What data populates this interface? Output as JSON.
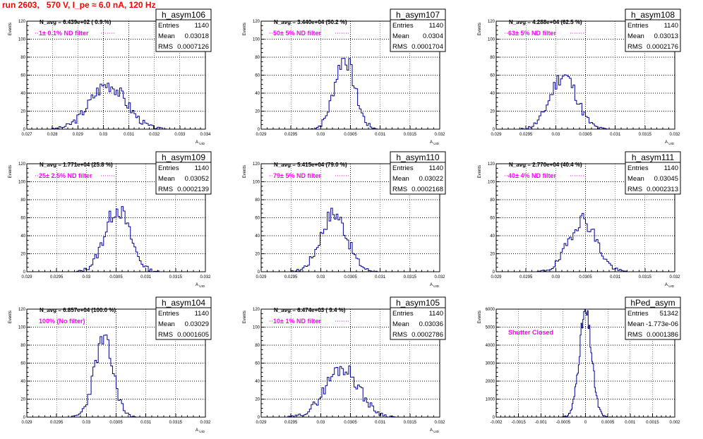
{
  "title": "run 2603,   570 V, I_pe ≈ 6.0 nA, 120 Hz",
  "colors": {
    "title": "#ff0000",
    "hist": "#000099",
    "filter_text": "#ff00ff"
  },
  "chart_data": [
    {
      "type": "bar",
      "name": "h_asym106",
      "ylabel": "Events",
      "xlabel": "A",
      "ylim": [
        0,
        120
      ],
      "xlim": [
        0.027,
        0.034
      ],
      "xticks": [
        0.027,
        0.028,
        0.029,
        0.03,
        0.031,
        0.032,
        0.033,
        0.034
      ],
      "xtick_labels": [
        "0.027",
        "0.028",
        "0.029",
        "0.03",
        "0.031",
        "0.032",
        "0.033",
        "0.034"
      ],
      "yticks": [
        0,
        20,
        40,
        60,
        80,
        100,
        120
      ],
      "stats": {
        "entries": "1140",
        "mean": "0.03018",
        "rms": "0.0007126"
      },
      "navg": "N_avg = 6.439e+02 ( 0.9 %)",
      "filter": "1± 0.1% ND filter",
      "hist_mean": 0.03018,
      "hist_sigma": 0.00071,
      "hist_peak": 50,
      "nbins": 100,
      "seed": 3,
      "grid": true
    },
    {
      "type": "bar",
      "name": "h_asym107",
      "ylabel": "Events",
      "xlabel": "A",
      "ylim": [
        0,
        120
      ],
      "xlim": [
        0.029,
        0.032
      ],
      "xticks": [
        0.029,
        0.0295,
        0.03,
        0.0305,
        0.031,
        0.0315,
        0.032
      ],
      "xtick_labels": [
        "0.029",
        "0.0295",
        "0.03",
        "0.0305",
        "0.031",
        "0.0315",
        "0.032"
      ],
      "yticks": [
        0,
        20,
        40,
        60,
        80,
        100,
        120
      ],
      "stats": {
        "entries": "1140",
        "mean": "0.0304",
        "rms": "0.0001704"
      },
      "navg": "N_avg = 3.440e+04 (50.2 %)",
      "filter": "50± 5% ND filter",
      "hist_mean": 0.0304,
      "hist_sigma": 0.00017,
      "hist_peak": 79,
      "nbins": 100,
      "seed": 7,
      "grid": true
    },
    {
      "type": "bar",
      "name": "h_asym108",
      "ylabel": "Events",
      "xlabel": "A",
      "ylim": [
        0,
        120
      ],
      "xlim": [
        0.029,
        0.032
      ],
      "xticks": [
        0.029,
        0.0295,
        0.03,
        0.0305,
        0.031,
        0.0315,
        0.032
      ],
      "xtick_labels": [
        "0.029",
        "0.0295",
        "0.03",
        "0.0305",
        "0.031",
        "0.0315",
        "0.032"
      ],
      "yticks": [
        0,
        20,
        40,
        60,
        80,
        100,
        120
      ],
      "stats": {
        "entries": "1140",
        "mean": "0.03013",
        "rms": "0.0002176"
      },
      "navg": "N_avg = 4.288e+04 (62.5 %)",
      "filter": "63± 5% ND filter",
      "hist_mean": 0.03013,
      "hist_sigma": 0.00022,
      "hist_peak": 60,
      "nbins": 100,
      "seed": 11,
      "grid": true
    },
    {
      "type": "bar",
      "name": "h_asym109",
      "ylabel": "Events",
      "xlabel": "A",
      "ylim": [
        0,
        120
      ],
      "xlim": [
        0.029,
        0.032
      ],
      "xticks": [
        0.029,
        0.0295,
        0.03,
        0.0305,
        0.031,
        0.0315,
        0.032
      ],
      "xtick_labels": [
        "0.029",
        "0.0295",
        "0.03",
        "0.0305",
        "0.031",
        "0.0315",
        "0.032"
      ],
      "yticks": [
        0,
        20,
        40,
        60,
        80,
        100,
        120
      ],
      "stats": {
        "entries": "1140",
        "mean": "0.03052",
        "rms": "0.0002139"
      },
      "navg": "N_avg = 1.771e+04 (25.8 %)",
      "filter": "25± 2.5% ND filter",
      "hist_mean": 0.03052,
      "hist_sigma": 0.00021,
      "hist_peak": 70,
      "nbins": 100,
      "seed": 13,
      "grid": true
    },
    {
      "type": "bar",
      "name": "h_asym110",
      "ylabel": "Events",
      "xlabel": "A",
      "ylim": [
        0,
        120
      ],
      "xlim": [
        0.029,
        0.032
      ],
      "xticks": [
        0.029,
        0.0295,
        0.03,
        0.0305,
        0.031,
        0.0315,
        0.032
      ],
      "xtick_labels": [
        "0.029",
        "0.0295",
        "0.03",
        "0.0305",
        "0.031",
        "0.0315",
        "0.032"
      ],
      "yticks": [
        0,
        20,
        40,
        60,
        80,
        100,
        120
      ],
      "stats": {
        "entries": "1140",
        "mean": "0.03022",
        "rms": "0.0002168"
      },
      "navg": "N_avg = 5.415e+04 (79.0 %)",
      "filter": "79± 5% ND filter",
      "hist_mean": 0.03022,
      "hist_sigma": 0.00022,
      "hist_peak": 65,
      "nbins": 100,
      "seed": 17,
      "grid": true
    },
    {
      "type": "bar",
      "name": "h_asym111",
      "ylabel": "Events",
      "xlabel": "A",
      "ylim": [
        0,
        120
      ],
      "xlim": [
        0.029,
        0.032
      ],
      "xticks": [
        0.029,
        0.0295,
        0.03,
        0.0305,
        0.031,
        0.0315,
        0.032
      ],
      "xtick_labels": [
        "0.029",
        "0.0295",
        "0.03",
        "0.0305",
        "0.031",
        "0.0315",
        "0.032"
      ],
      "yticks": [
        0,
        20,
        40,
        60,
        80,
        100,
        120
      ],
      "stats": {
        "entries": "1140",
        "mean": "0.03045",
        "rms": "0.0002313"
      },
      "navg": "N_avg = 2.770e+04 (40.4 %)",
      "filter": "40± 4% ND filter",
      "hist_mean": 0.03045,
      "hist_sigma": 0.00023,
      "hist_peak": 58,
      "nbins": 100,
      "seed": 19,
      "grid": true
    },
    {
      "type": "bar",
      "name": "h_asym104",
      "ylabel": "Events",
      "xlabel": "A",
      "ylim": [
        0,
        120
      ],
      "xlim": [
        0.029,
        0.032
      ],
      "xticks": [
        0.029,
        0.0295,
        0.03,
        0.0305,
        0.031,
        0.0315,
        0.032
      ],
      "xtick_labels": [
        "0.029",
        "0.0295",
        "0.03",
        "0.0305",
        "0.031",
        "0.0315",
        "0.032"
      ],
      "yticks": [
        0,
        20,
        40,
        60,
        80,
        100,
        120
      ],
      "stats": {
        "entries": "1140",
        "mean": "0.03029",
        "rms": "0.0001605"
      },
      "navg": "N_avg = 6.857e+04 (100.0 %)",
      "filter": "100% (No filter)",
      "hist_mean": 0.03029,
      "hist_sigma": 0.00016,
      "hist_peak": 85,
      "nbins": 100,
      "seed": 23,
      "grid": true
    },
    {
      "type": "bar",
      "name": "h_asym105",
      "ylabel": "Events",
      "xlabel": "A",
      "ylim": [
        0,
        120
      ],
      "xlim": [
        0.029,
        0.032
      ],
      "xticks": [
        0.029,
        0.0295,
        0.03,
        0.0305,
        0.031,
        0.0315,
        0.032
      ],
      "xtick_labels": [
        "0.029",
        "0.0295",
        "0.03",
        "0.0305",
        "0.031",
        "0.0315",
        "0.032"
      ],
      "yticks": [
        0,
        20,
        40,
        60,
        80,
        100,
        120
      ],
      "stats": {
        "entries": "1140",
        "mean": "0.03036",
        "rms": "0.0002786"
      },
      "navg": "N_avg = 6.474e+03 ( 9.4 %)",
      "filter": "10± 1% ND filter",
      "hist_mean": 0.03036,
      "hist_sigma": 0.00028,
      "hist_peak": 55,
      "nbins": 100,
      "seed": 29,
      "grid": true
    },
    {
      "type": "bar",
      "name": "hPed_asym",
      "ylabel": "Events",
      "xlabel": "",
      "ylim": [
        0,
        6000
      ],
      "xlim": [
        -0.002,
        0.002
      ],
      "xticks": [
        -0.002,
        -0.0015,
        -0.001,
        -0.0005,
        0,
        0.0005,
        0.001,
        0.0015,
        0.002
      ],
      "xtick_labels": [
        "-0.002",
        "-0.0015",
        "-0.001",
        "-0.0005",
        "0",
        "0.0005",
        "0.001",
        "0.0015",
        "0.002"
      ],
      "yticks": [
        0,
        1000,
        2000,
        3000,
        4000,
        5000,
        6000
      ],
      "stats": {
        "entries": "51342",
        "mean": "-1.773e-06",
        "rms": "0.0001386"
      },
      "navg": "",
      "filter": "Shutter Closed",
      "hist_mean": -1.8e-06,
      "hist_sigma": 0.000139,
      "hist_peak": 5800,
      "nbins": 200,
      "seed": 31,
      "grid": true
    }
  ],
  "labels": {
    "entries": "Entries",
    "mean": "Mean",
    "rms": "RMS",
    "xsub": "UID"
  }
}
